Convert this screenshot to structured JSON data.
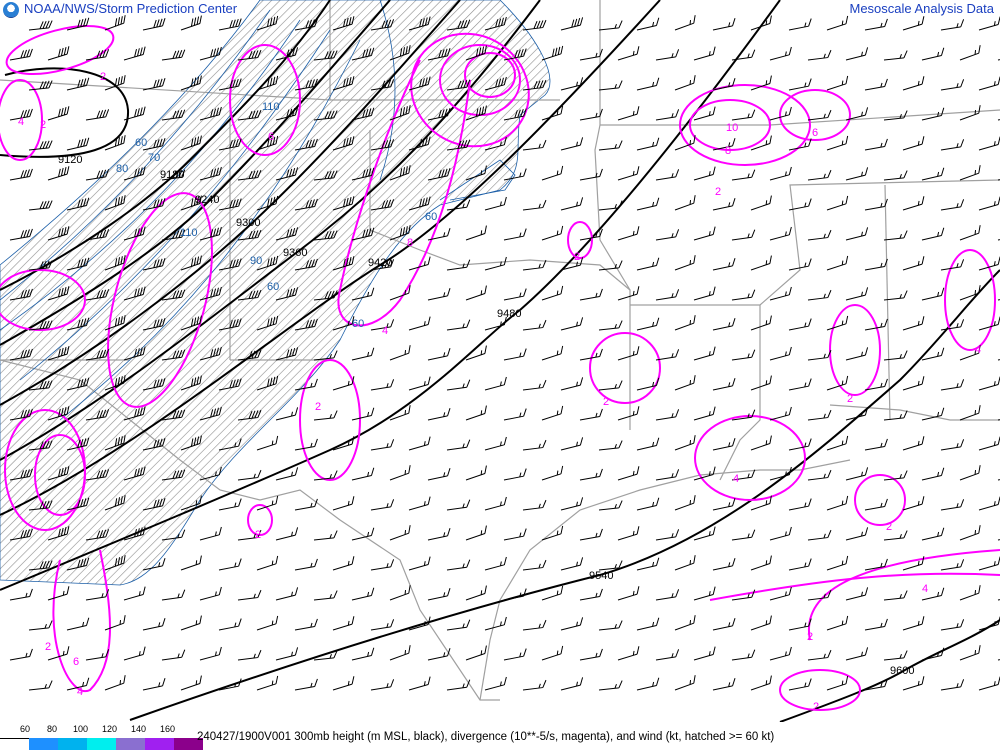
{
  "header": {
    "title": "NOAA/NWS/Storm Prediction Center",
    "right_title": "Mesoscale Analysis Data"
  },
  "footer": {
    "caption": "240427/1900V001 300mb height (m MSL, black), divergence (10**-5/s, magenta), and wind (kt, hatched >= 60 kt)",
    "legend": {
      "ticks": [
        "60",
        "80",
        "100",
        "120",
        "140",
        "160"
      ],
      "colors": [
        "#ffffff",
        "#1e90ff",
        "#00b2ee",
        "#00eeee",
        "#8a6fd0",
        "#a020f0",
        "#8b008b"
      ]
    }
  },
  "map": {
    "colors": {
      "height": "#000000",
      "divergence": "#ff00ff",
      "isotach": "#1c5fa8",
      "borders": "#a0a0a0",
      "hatch": "#808080"
    },
    "height_labels": [
      "9120",
      "9180",
      "9240",
      "9300",
      "9360",
      "9420",
      "9480",
      "9540",
      "9600"
    ],
    "isotach_labels": [
      "60",
      "70",
      "80",
      "90",
      "110",
      "60",
      "60",
      "110",
      "60"
    ],
    "divergence_labels": [
      "2",
      "4",
      "2",
      "6",
      "8",
      "10",
      "8",
      "6",
      "4",
      "2",
      "2",
      "4",
      "2",
      "2",
      "4",
      "2",
      "6",
      "4",
      "2",
      "2",
      "2",
      "2",
      "4",
      "2"
    ]
  }
}
